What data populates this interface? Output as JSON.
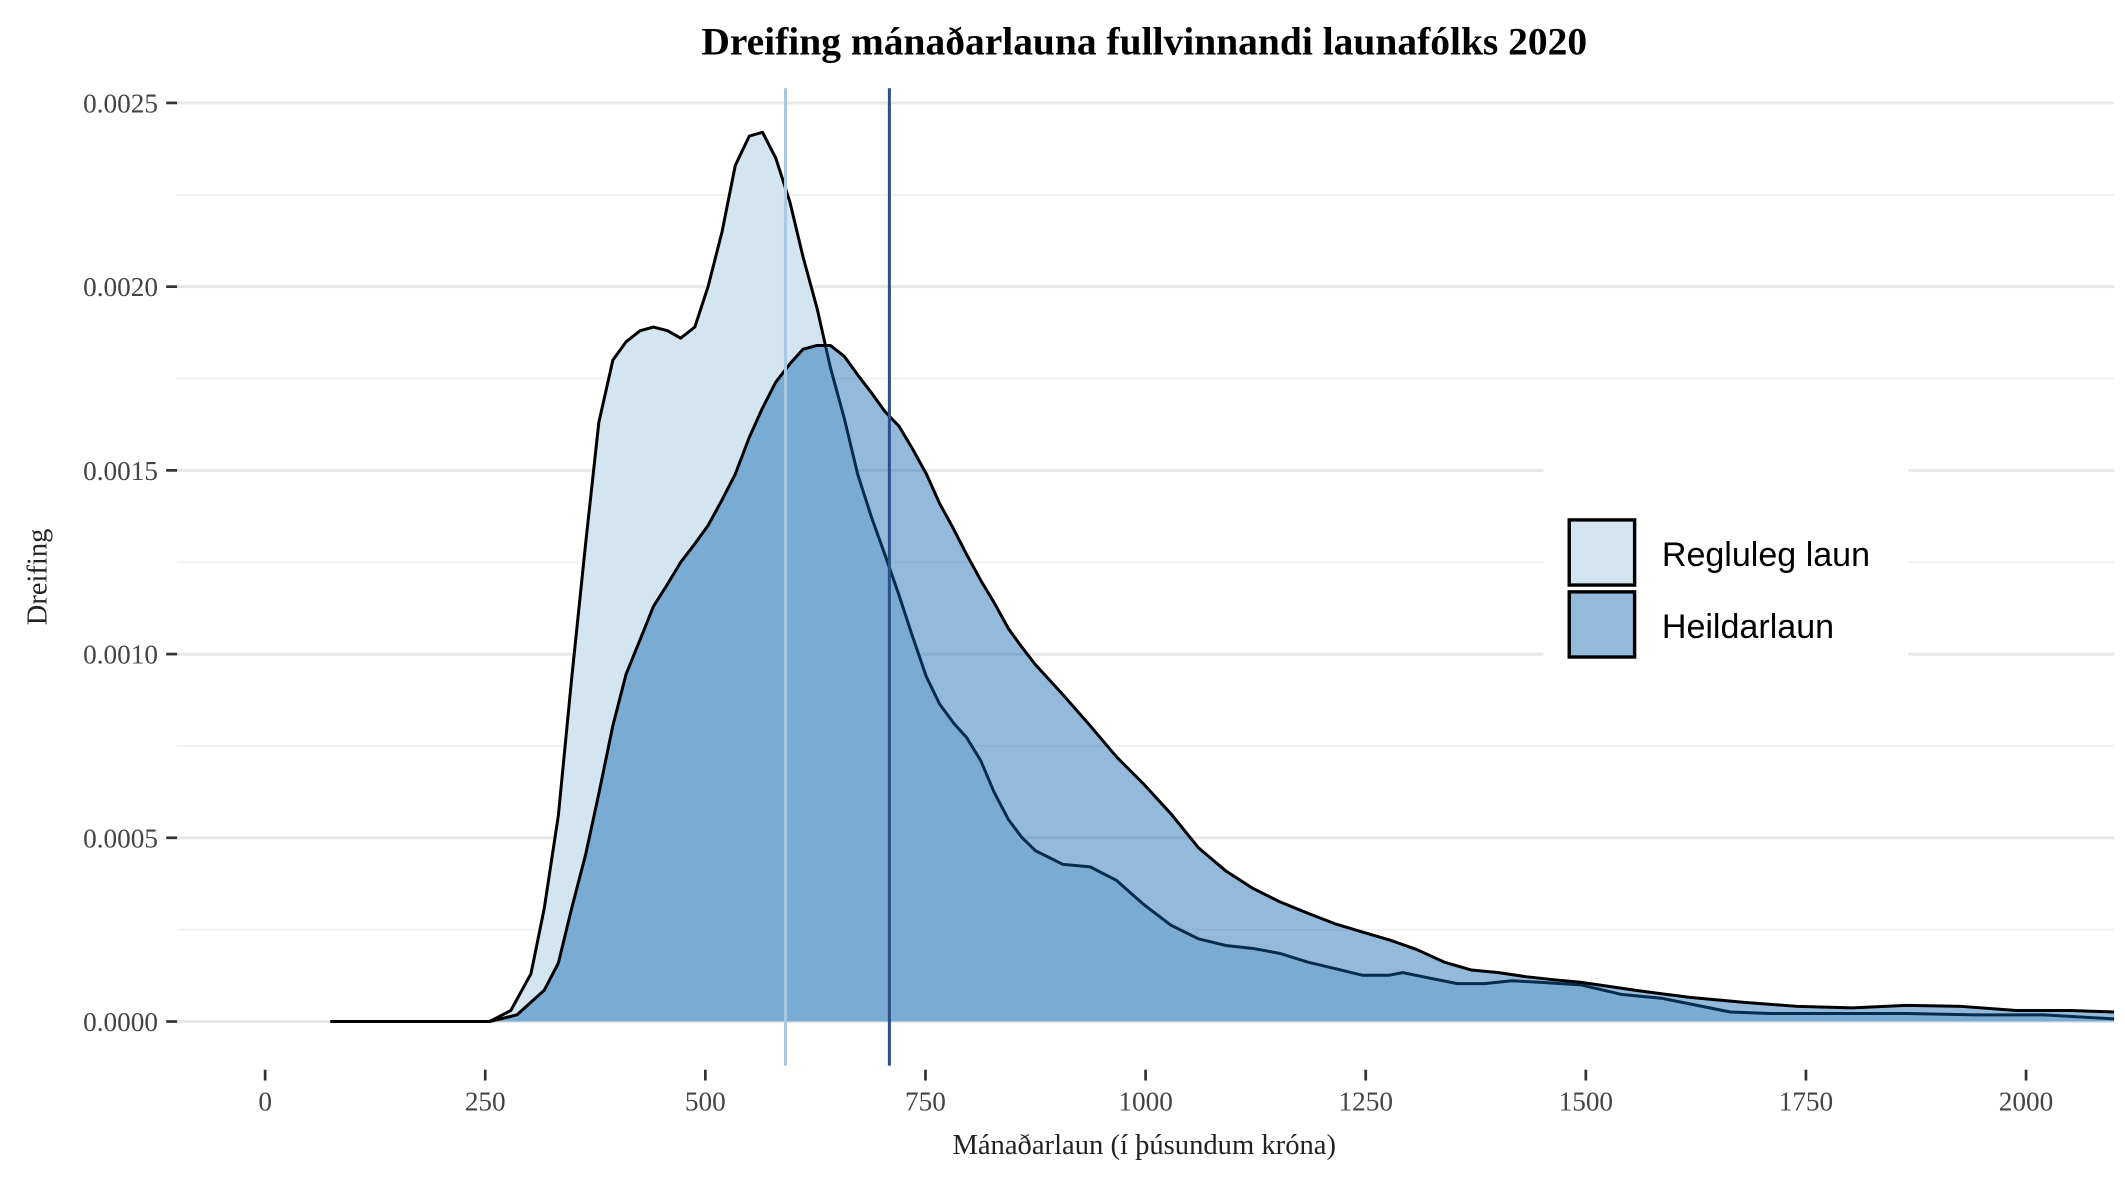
{
  "chart_data": {
    "type": "area",
    "title": "Dreifing mánaðarlauna fullvinnandi launafólks 2020",
    "xlabel": "Mánaðarlaun (í þúsundum króna)",
    "ylabel": "Dreifing",
    "xlim": [
      -100,
      2100
    ],
    "ylim": [
      -0.00012,
      0.00254
    ],
    "x_ticks": [
      0,
      250,
      500,
      750,
      1000,
      1250,
      1500,
      1750,
      2000
    ],
    "x_tick_labels": [
      "0",
      "250",
      "500",
      "750",
      "1000",
      "1250",
      "1500",
      "1750",
      "2000"
    ],
    "y_ticks": [
      0,
      0.0005,
      0.001,
      0.0015,
      0.002,
      0.0025
    ],
    "y_tick_labels": [
      "0.0000",
      "0.0005",
      "0.0010",
      "0.0015",
      "0.0020",
      "0.0025"
    ],
    "grid": "horizontal",
    "legend_position": "right",
    "series": [
      {
        "name": "Regluleg laun",
        "color": "#d2e5f0",
        "vline": 591,
        "vline_color": "#a9c8e2",
        "x": [
          74,
          255,
          279,
          302,
          317,
          333,
          348,
          364,
          379,
          395,
          410,
          426,
          441,
          457,
          472,
          488,
          503,
          519,
          534,
          550,
          565,
          580,
          596,
          611,
          627,
          642,
          658,
          673,
          689,
          704,
          720,
          735,
          751,
          766,
          782,
          797,
          813,
          828,
          844,
          859,
          875,
          906,
          937,
          967,
          998,
          1029,
          1060,
          1091,
          1122,
          1153,
          1184,
          1215,
          1246,
          1277,
          1292,
          1323,
          1354,
          1385,
          1416,
          1447,
          1494,
          1540,
          1587,
          1618,
          1664,
          1710,
          1788,
          1865,
          1943,
          2020,
          2100
        ],
        "y": [
          0,
          0,
          3e-05,
          0.00013,
          0.000307,
          0.000561,
          0.000931,
          0.0013,
          0.00163,
          0.0018,
          0.00185,
          0.00188,
          0.00189,
          0.00188,
          0.00186,
          0.00189,
          0.002,
          0.00215,
          0.00233,
          0.00241,
          0.00242,
          0.00235,
          0.00223,
          0.00208,
          0.00194,
          0.00178,
          0.00164,
          0.00149,
          0.00137,
          0.00127,
          0.00116,
          0.00105,
          0.000938,
          0.000864,
          0.000812,
          0.000772,
          0.000709,
          0.000624,
          0.00055,
          0.000502,
          0.000465,
          0.000428,
          0.000421,
          0.000384,
          0.000318,
          0.000262,
          0.000225,
          0.000207,
          0.000199,
          0.000185,
          0.000162,
          0.000144,
          0.000126,
          0.000126,
          0.000133,
          0.000118,
          0.000103,
          0.000103,
          0.000111,
          0.000107,
          0.0001,
          7.4e-05,
          6.3e-05,
          4.8e-05,
          2.6e-05,
          2.2e-05,
          2.2e-05,
          2.2e-05,
          1.8e-05,
          1.8e-05,
          7e-06
        ]
      },
      {
        "name": "Heildarlaun",
        "color": "#93badb",
        "vline": 709,
        "vline_color": "#2c4f86",
        "x": [
          74,
          255,
          286,
          317,
          333,
          348,
          364,
          379,
          395,
          410,
          426,
          441,
          457,
          472,
          488,
          503,
          519,
          534,
          550,
          565,
          580,
          596,
          611,
          627,
          642,
          658,
          673,
          689,
          704,
          720,
          735,
          751,
          766,
          782,
          797,
          813,
          828,
          844,
          859,
          875,
          906,
          937,
          967,
          998,
          1029,
          1060,
          1091,
          1122,
          1153,
          1184,
          1215,
          1246,
          1277,
          1308,
          1339,
          1370,
          1401,
          1432,
          1463,
          1494,
          1556,
          1618,
          1680,
          1741,
          1803,
          1865,
          1927,
          1989,
          2050,
          2100
        ],
        "y": [
          0,
          0,
          1.8e-05,
          8.5e-05,
          0.000159,
          0.000307,
          0.000454,
          0.00062,
          0.000805,
          0.000945,
          0.00104,
          0.00113,
          0.00119,
          0.00125,
          0.0013,
          0.00135,
          0.00142,
          0.00149,
          0.00159,
          0.00167,
          0.00174,
          0.00179,
          0.00183,
          0.00184,
          0.00184,
          0.00181,
          0.00176,
          0.00171,
          0.00166,
          0.00162,
          0.00156,
          0.00149,
          0.00141,
          0.00134,
          0.00127,
          0.0012,
          0.00114,
          0.00107,
          0.00102,
          0.000971,
          0.00089,
          0.000805,
          0.00072,
          0.000646,
          0.000565,
          0.000473,
          0.00041,
          0.000362,
          0.000325,
          0.000295,
          0.000266,
          0.000244,
          0.000222,
          0.000196,
          0.000162,
          0.00014,
          0.000133,
          0.000122,
          0.000114,
          0.000107,
          8.5e-05,
          6.6e-05,
          5.2e-05,
          4.1e-05,
          3.7e-05,
          4.4e-05,
          4.1e-05,
          3e-05,
          3e-05,
          2.6e-05
        ]
      }
    ]
  }
}
